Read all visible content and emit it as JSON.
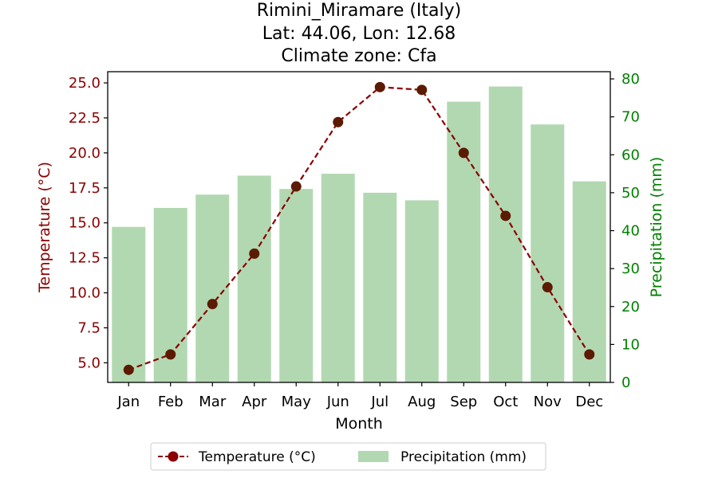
{
  "chart_data": {
    "type": "bar+line",
    "title": [
      "Rimini_Miramare (Italy)",
      "Lat: 44.06, Lon: 12.68",
      "Climate zone: Cfa"
    ],
    "categories": [
      "Jan",
      "Feb",
      "Mar",
      "Apr",
      "May",
      "Jun",
      "Jul",
      "Aug",
      "Sep",
      "Oct",
      "Nov",
      "Dec"
    ],
    "xlabel": "Month",
    "series": [
      {
        "name": "Temperature (°C)",
        "type": "line",
        "axis": "left",
        "values": [
          4.5,
          5.6,
          9.2,
          12.8,
          17.6,
          22.2,
          24.7,
          24.5,
          20.0,
          15.5,
          10.4,
          5.6
        ],
        "color": "#8b0000",
        "marker_color": "#5c1a00"
      },
      {
        "name": "Precipitation (mm)",
        "type": "bar",
        "axis": "right",
        "values": [
          41,
          46,
          49.5,
          54.5,
          51,
          55,
          50,
          48,
          74,
          78,
          68,
          53
        ],
        "color": "#b2d8b2"
      }
    ],
    "y_left": {
      "label": "Temperature (°C)",
      "range": [
        3.6,
        25.8
      ],
      "ticks": [
        5.0,
        7.5,
        10.0,
        12.5,
        15.0,
        17.5,
        20.0,
        22.5,
        25.0
      ],
      "tick_labels": [
        "5.0",
        "7.5",
        "10.0",
        "12.5",
        "15.0",
        "17.5",
        "20.0",
        "22.5",
        "25.0"
      ],
      "color": "#8b0000"
    },
    "y_right": {
      "label": "Precipitation (mm)",
      "range": [
        0,
        81.9
      ],
      "ticks": [
        0,
        10,
        20,
        30,
        40,
        50,
        60,
        70,
        80
      ],
      "tick_labels": [
        "0",
        "10",
        "20",
        "30",
        "40",
        "50",
        "60",
        "70",
        "80"
      ],
      "color": "#008000"
    },
    "legend": {
      "placement": "bottom-center",
      "entries": [
        "Temperature (°C)",
        "Precipitation (mm)"
      ]
    },
    "grid": false
  }
}
